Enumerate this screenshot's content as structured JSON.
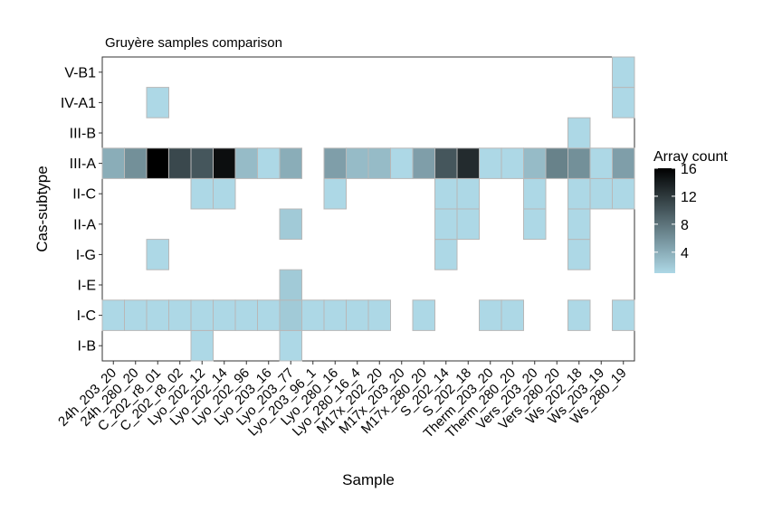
{
  "chart_data": {
    "type": "heatmap",
    "title": "Gruyère samples comparison",
    "xlabel": "Sample",
    "ylabel": "Cas-subtype",
    "x": [
      "24h_203_20",
      "24h_280_20",
      "C_202_r8_01",
      "C_202_r8_02",
      "Lyo_202_12",
      "Lyo_202_14",
      "Lyo_202_96",
      "Lyo_203_16",
      "Lyo_203_77",
      "Lyo_203_96_1",
      "Lyo_280_16",
      "Lyo_280_16_4",
      "M17x_202_20",
      "M17x_203_20",
      "M17x_280_20",
      "S_202_14",
      "S_202_18",
      "Therm_203_20",
      "Therm_280_20",
      "Vers_203_20",
      "Vers_280_20",
      "Ws_202_18",
      "Ws_203_19",
      "Ws_280_19"
    ],
    "y": [
      "I-B",
      "I-C",
      "I-E",
      "I-G",
      "II-A",
      "II-C",
      "III-A",
      "III-B",
      "IV-A1",
      "V-B1"
    ],
    "cells": [
      {
        "x": "Lyo_202_12",
        "y": "I-B",
        "value": 1
      },
      {
        "x": "Lyo_203_77",
        "y": "I-B",
        "value": 1
      },
      {
        "x": "24h_203_20",
        "y": "I-C",
        "value": 1
      },
      {
        "x": "24h_280_20",
        "y": "I-C",
        "value": 1
      },
      {
        "x": "C_202_r8_01",
        "y": "I-C",
        "value": 1
      },
      {
        "x": "C_202_r8_02",
        "y": "I-C",
        "value": 1
      },
      {
        "x": "Lyo_202_12",
        "y": "I-C",
        "value": 1
      },
      {
        "x": "Lyo_202_14",
        "y": "I-C",
        "value": 1
      },
      {
        "x": "Lyo_202_96",
        "y": "I-C",
        "value": 1
      },
      {
        "x": "Lyo_203_16",
        "y": "I-C",
        "value": 1
      },
      {
        "x": "Lyo_203_77",
        "y": "I-C",
        "value": 2
      },
      {
        "x": "Lyo_203_96_1",
        "y": "I-C",
        "value": 1
      },
      {
        "x": "Lyo_280_16",
        "y": "I-C",
        "value": 1
      },
      {
        "x": "Lyo_280_16_4",
        "y": "I-C",
        "value": 1
      },
      {
        "x": "M17x_202_20",
        "y": "I-C",
        "value": 1
      },
      {
        "x": "M17x_280_20",
        "y": "I-C",
        "value": 1
      },
      {
        "x": "Therm_203_20",
        "y": "I-C",
        "value": 1
      },
      {
        "x": "Therm_280_20",
        "y": "I-C",
        "value": 1
      },
      {
        "x": "Ws_202_18",
        "y": "I-C",
        "value": 1
      },
      {
        "x": "Ws_280_19",
        "y": "I-C",
        "value": 1
      },
      {
        "x": "Lyo_203_77",
        "y": "I-E",
        "value": 2
      },
      {
        "x": "C_202_r8_01",
        "y": "I-G",
        "value": 1
      },
      {
        "x": "S_202_14",
        "y": "I-G",
        "value": 1
      },
      {
        "x": "Ws_202_18",
        "y": "I-G",
        "value": 1
      },
      {
        "x": "Lyo_203_77",
        "y": "II-A",
        "value": 2
      },
      {
        "x": "S_202_14",
        "y": "II-A",
        "value": 1
      },
      {
        "x": "S_202_18",
        "y": "II-A",
        "value": 1
      },
      {
        "x": "Vers_203_20",
        "y": "II-A",
        "value": 1
      },
      {
        "x": "Ws_202_18",
        "y": "II-A",
        "value": 1
      },
      {
        "x": "Lyo_202_12",
        "y": "II-C",
        "value": 1
      },
      {
        "x": "Lyo_202_14",
        "y": "II-C",
        "value": 1
      },
      {
        "x": "Lyo_280_16",
        "y": "II-C",
        "value": 1
      },
      {
        "x": "S_202_14",
        "y": "II-C",
        "value": 1
      },
      {
        "x": "S_202_18",
        "y": "II-C",
        "value": 1
      },
      {
        "x": "Vers_203_20",
        "y": "II-C",
        "value": 1
      },
      {
        "x": "Ws_202_18",
        "y": "II-C",
        "value": 1
      },
      {
        "x": "Ws_203_19",
        "y": "II-C",
        "value": 1
      },
      {
        "x": "Ws_280_19",
        "y": "II-C",
        "value": 1
      },
      {
        "x": "24h_203_20",
        "y": "III-A",
        "value": 4
      },
      {
        "x": "24h_280_20",
        "y": "III-A",
        "value": 6
      },
      {
        "x": "C_202_r8_01",
        "y": "III-A",
        "value": 16
      },
      {
        "x": "C_202_r8_02",
        "y": "III-A",
        "value": 11
      },
      {
        "x": "Lyo_202_12",
        "y": "III-A",
        "value": 10
      },
      {
        "x": "Lyo_202_14",
        "y": "III-A",
        "value": 15
      },
      {
        "x": "Lyo_202_96",
        "y": "III-A",
        "value": 3
      },
      {
        "x": "Lyo_203_16",
        "y": "III-A",
        "value": 1
      },
      {
        "x": "Lyo_203_77",
        "y": "III-A",
        "value": 4
      },
      {
        "x": "Lyo_280_16",
        "y": "III-A",
        "value": 5
      },
      {
        "x": "Lyo_280_16_4",
        "y": "III-A",
        "value": 3
      },
      {
        "x": "M17x_202_20",
        "y": "III-A",
        "value": 3
      },
      {
        "x": "M17x_203_20",
        "y": "III-A",
        "value": 1
      },
      {
        "x": "M17x_280_20",
        "y": "III-A",
        "value": 5
      },
      {
        "x": "S_202_14",
        "y": "III-A",
        "value": 10
      },
      {
        "x": "S_202_18",
        "y": "III-A",
        "value": 13
      },
      {
        "x": "Therm_203_20",
        "y": "III-A",
        "value": 1
      },
      {
        "x": "Therm_280_20",
        "y": "III-A",
        "value": 1
      },
      {
        "x": "Vers_203_20",
        "y": "III-A",
        "value": 3
      },
      {
        "x": "Vers_280_20",
        "y": "III-A",
        "value": 7
      },
      {
        "x": "Ws_202_18",
        "y": "III-A",
        "value": 6
      },
      {
        "x": "Ws_203_19",
        "y": "III-A",
        "value": 1
      },
      {
        "x": "Ws_280_19",
        "y": "III-A",
        "value": 5
      },
      {
        "x": "Ws_202_18",
        "y": "III-B",
        "value": 1
      },
      {
        "x": "C_202_r8_01",
        "y": "IV-A1",
        "value": 1
      },
      {
        "x": "Ws_280_19",
        "y": "IV-A1",
        "value": 1
      },
      {
        "x": "Ws_280_19",
        "y": "V-B1",
        "value": 1
      }
    ],
    "color_scale": {
      "low": "#add8e6",
      "high": "#000000",
      "min": 1,
      "max": 16
    },
    "legend": {
      "title": "Array count",
      "ticks": [
        4,
        8,
        12,
        16
      ],
      "position": "right"
    },
    "grid": false
  }
}
